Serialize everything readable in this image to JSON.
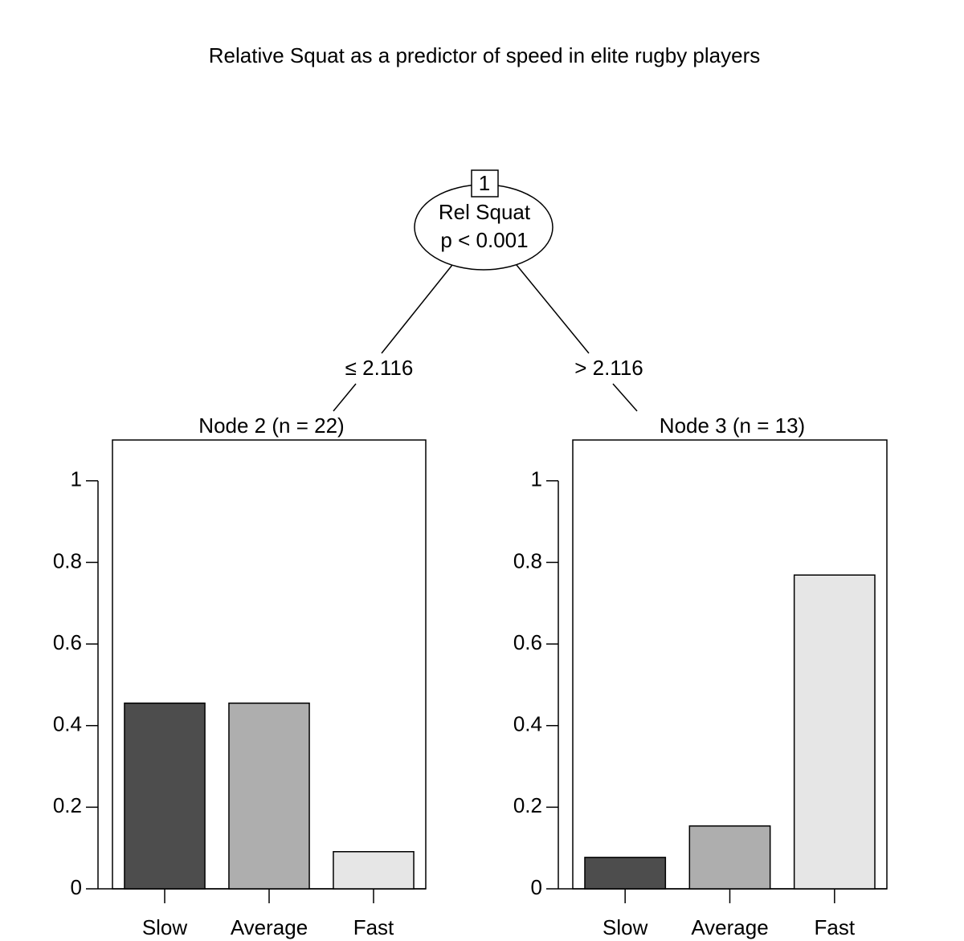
{
  "title": "Relative Squat as a predictor of speed in elite rugby players",
  "tree": {
    "root": {
      "id": "1",
      "label": "Rel Squat",
      "p": "p < 0.001"
    },
    "edges": [
      "≤ 2.116",
      "> 2.116"
    ]
  },
  "chart_data": [
    {
      "type": "bar",
      "title": "Node 2 (n = 22)",
      "categories": [
        "Slow",
        "Average",
        "Fast"
      ],
      "values": [
        0.455,
        0.455,
        0.091
      ],
      "colors": [
        "#4d4d4d",
        "#aeaeae",
        "#e6e6e6"
      ],
      "ylim": [
        0,
        1.1
      ],
      "yticks": [
        0,
        0.2,
        0.4,
        0.6,
        0.8,
        1
      ]
    },
    {
      "type": "bar",
      "title": "Node 3 (n = 13)",
      "categories": [
        "Slow",
        "Average",
        "Fast"
      ],
      "values": [
        0.077,
        0.154,
        0.769
      ],
      "colors": [
        "#4d4d4d",
        "#aeaeae",
        "#e6e6e6"
      ],
      "ylim": [
        0,
        1.1
      ],
      "yticks": [
        0,
        0.2,
        0.4,
        0.6,
        0.8,
        1
      ]
    }
  ]
}
